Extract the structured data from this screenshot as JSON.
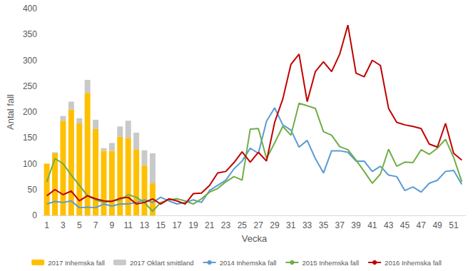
{
  "chart_data": {
    "type": "bar",
    "x_label": "Vecka",
    "y_label": "Antal fall",
    "categories": [
      "1",
      null,
      "3",
      null,
      "5",
      null,
      "7",
      null,
      "9",
      null,
      "11",
      null,
      "13",
      null,
      "15",
      null,
      "17",
      null,
      "19",
      null,
      "21",
      null,
      "23",
      null,
      "25",
      null,
      "27",
      null,
      "29",
      null,
      "31",
      null,
      "33",
      null,
      "35",
      null,
      "37",
      null,
      "39",
      null,
      "41",
      null,
      "43",
      null,
      "45",
      null,
      "47",
      null,
      "49",
      null,
      "51",
      null
    ],
    "ylim": [
      0,
      400
    ],
    "yticks": [
      0,
      50,
      100,
      150,
      200,
      250,
      300,
      350,
      400
    ],
    "grid": false,
    "legend": "bottom",
    "stacked": true,
    "series": [
      {
        "name": "2017 Inhemska fall",
        "type": "bar",
        "color": "#ffc000",
        "values": [
          100,
          120,
          183,
          205,
          178,
          237,
          167,
          125,
          125,
          152,
          150,
          128,
          97,
          62,
          null,
          null,
          null,
          null,
          null,
          null,
          null,
          null,
          null,
          null,
          null,
          null,
          null,
          null,
          null,
          null,
          null,
          null,
          null,
          null,
          null,
          null,
          null,
          null,
          null,
          null,
          null,
          null,
          null,
          null,
          null,
          null,
          null,
          null,
          null,
          null,
          null,
          null
        ]
      },
      {
        "name": "2017 Oklart smittland",
        "type": "bar",
        "color": "#c9c9c9",
        "values": [
          0,
          2,
          9,
          15,
          10,
          25,
          18,
          5,
          15,
          20,
          33,
          32,
          29,
          58,
          null,
          null,
          null,
          null,
          null,
          null,
          null,
          null,
          null,
          null,
          null,
          null,
          null,
          null,
          null,
          null,
          null,
          null,
          null,
          null,
          null,
          null,
          null,
          null,
          null,
          null,
          null,
          null,
          null,
          null,
          null,
          null,
          null,
          null,
          null,
          null,
          null,
          null
        ]
      },
      {
        "name": "2014 Inhemska fall",
        "type": "line",
        "color": "#5b9bd5",
        "values": [
          22,
          27,
          25,
          28,
          15,
          16,
          15,
          22,
          18,
          22,
          22,
          25,
          30,
          25,
          35,
          28,
          22,
          25,
          30,
          25,
          48,
          58,
          68,
          90,
          105,
          130,
          120,
          182,
          208,
          175,
          165,
          132,
          145,
          110,
          82,
          125,
          125,
          122,
          105,
          105,
          85,
          95,
          78,
          75,
          48,
          55,
          45,
          62,
          68,
          85,
          87,
          60
        ]
      },
      {
        "name": "2015 Inhemska fall",
        "type": "line",
        "color": "#70ad47",
        "values": [
          65,
          110,
          100,
          78,
          58,
          38,
          30,
          25,
          28,
          30,
          40,
          35,
          25,
          8,
          25,
          30,
          32,
          28,
          22,
          32,
          45,
          52,
          65,
          75,
          68,
          167,
          168,
          110,
          140,
          172,
          155,
          217,
          212,
          207,
          162,
          155,
          133,
          127,
          107,
          85,
          62,
          80,
          128,
          95,
          103,
          102,
          127,
          118,
          130,
          147,
          112,
          65
        ]
      },
      {
        "name": "2016 Inhemska fall",
        "type": "line",
        "color": "#c00000",
        "values": [
          38,
          50,
          40,
          47,
          28,
          38,
          32,
          28,
          27,
          33,
          35,
          22,
          25,
          32,
          22,
          32,
          28,
          22,
          42,
          43,
          58,
          82,
          85,
          102,
          123,
          103,
          122,
          105,
          180,
          225,
          292,
          312,
          220,
          278,
          297,
          278,
          312,
          368,
          275,
          268,
          300,
          290,
          207,
          180,
          175,
          172,
          168,
          138,
          132,
          178,
          120,
          107
        ]
      }
    ]
  }
}
